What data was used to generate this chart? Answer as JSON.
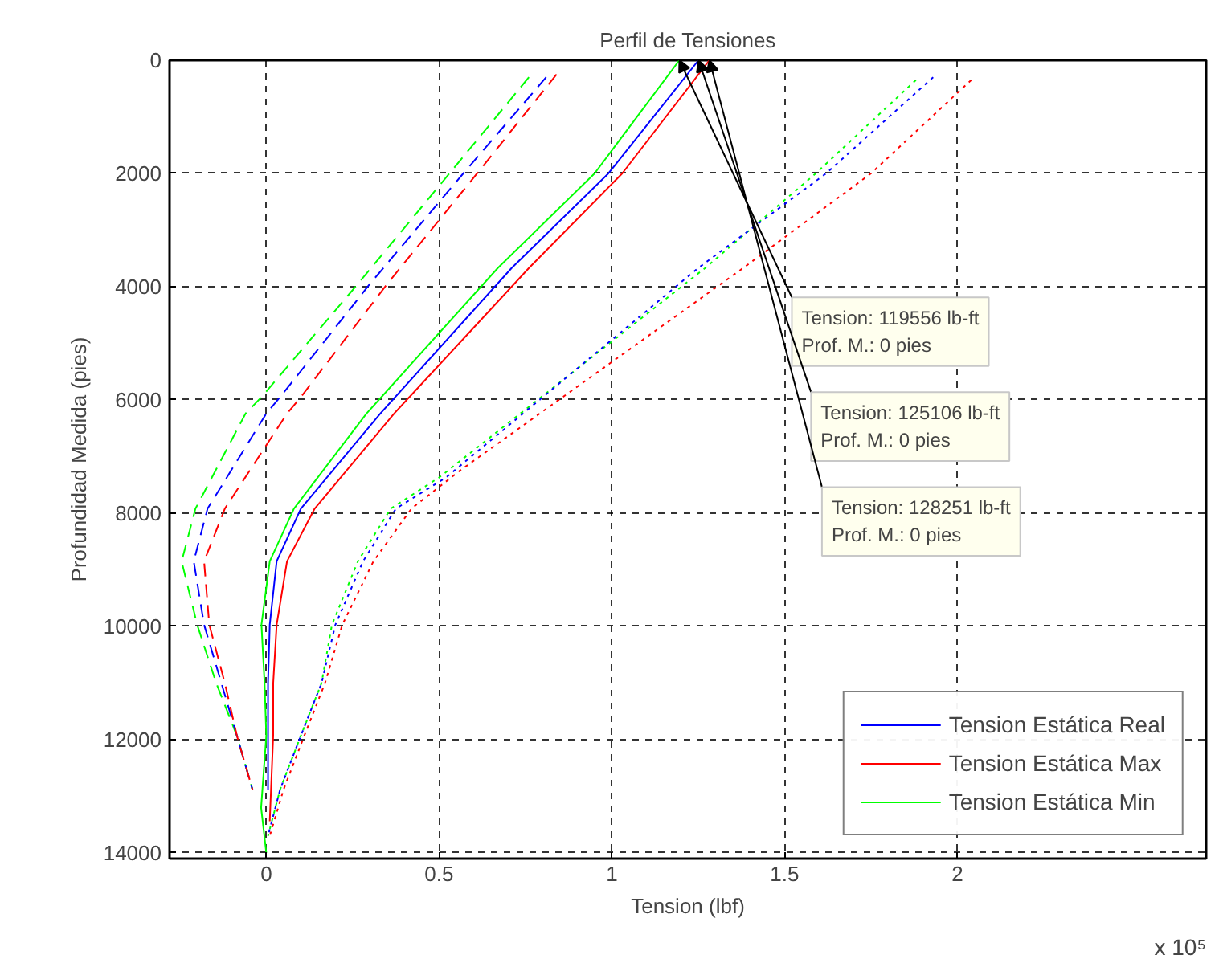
{
  "chart_data": {
    "type": "line",
    "title": "Perfil de Tensiones",
    "xlabel": "Tension (lbf)",
    "ylabel": "Profundidad Medida (pies)",
    "xlim": [
      -0.28,
      2.72
    ],
    "ylim": [
      14100,
      0
    ],
    "xticks": [
      0,
      0.5,
      1,
      1.5,
      2
    ],
    "yticks": [
      0,
      2000,
      4000,
      6000,
      8000,
      10000,
      12000,
      14000
    ],
    "grid": true,
    "legend": "bottom right",
    "annotations": [
      "x 10⁵",
      {
        "text": "Tension: 119556 lb-ft\nProf. M.: 0  pies",
        "x": 1.19556,
        "y": 0
      },
      {
        "text": "Tension: 125106 lb-ft\nProf. M.: 0  pies",
        "x": 1.25106,
        "y": 0
      },
      {
        "text": "Tension: 128251 lb-ft\nProf. M.: 0  pies",
        "x": 1.28251,
        "y": 0
      }
    ],
    "series": [
      {
        "name": "Tension Estática Real",
        "color": "#0000ff",
        "line_style": "solid",
        "x": [
          1.25106,
          0.99,
          0.71,
          0.33,
          0.1,
          0.03,
          0.01,
          0.005,
          0.005,
          0.005
        ],
        "values": [
          0,
          2000,
          3670,
          6240,
          7920,
          8850,
          9970,
          11000,
          11930,
          12880
        ]
      },
      {
        "name": "Tension Estática Max",
        "color": "#ff0000",
        "line_style": "solid",
        "x": [
          1.28251,
          1.03,
          0.76,
          0.37,
          0.14,
          0.06,
          0.03,
          0.02,
          0.02,
          0.01
        ],
        "values": [
          0,
          2000,
          3670,
          6240,
          7920,
          8850,
          9970,
          11000,
          11930,
          13440
        ]
      },
      {
        "name": "Tension Estática Min",
        "color": "#00ff00",
        "line_style": "solid",
        "x": [
          1.19556,
          0.95,
          0.67,
          0.29,
          0.08,
          0.01,
          -0.014,
          -0.005,
          0,
          -0.015,
          0
        ],
        "values": [
          0,
          2000,
          3670,
          6240,
          7920,
          8850,
          9970,
          11000,
          11930,
          13200,
          14000
        ]
      },
      {
        "color": "#00ff00",
        "line_style": "dashed",
        "x": [
          0.76,
          0.53,
          0.265,
          -0.014,
          -0.06,
          -0.205,
          -0.245,
          -0.2,
          -0.145,
          -0.085,
          -0.04
        ],
        "values": [
          300,
          2000,
          3950,
          5950,
          6240,
          7920,
          8850,
          9970,
          11000,
          11930,
          12880
        ]
      },
      {
        "color": "#0000ff",
        "line_style": "dashed",
        "x": [
          0.81,
          0.57,
          0.3,
          0.04,
          0,
          -0.17,
          -0.21,
          -0.18,
          -0.13,
          -0.085,
          -0.04
        ],
        "values": [
          300,
          2000,
          3950,
          5950,
          6240,
          7920,
          8850,
          9970,
          11000,
          11930,
          12880
        ]
      },
      {
        "color": "#ff0000",
        "line_style": "dashed",
        "x": [
          0.84,
          0.61,
          0.35,
          0.1,
          0.06,
          -0.12,
          -0.18,
          -0.165,
          -0.12,
          -0.085,
          -0.04
        ],
        "values": [
          250,
          2000,
          3950,
          5950,
          6240,
          7920,
          8850,
          9970,
          11000,
          11930,
          12880
        ]
      },
      {
        "color": "#00ff00",
        "line_style": "dotted",
        "x": [
          1.88,
          1.59,
          1.27,
          0.5,
          0.36,
          0.265,
          0.19,
          0.16,
          0.1,
          0.04,
          0.005
        ],
        "values": [
          350,
          2000,
          3670,
          7370,
          7920,
          8850,
          9970,
          11000,
          11930,
          12880,
          13700
        ]
      },
      {
        "color": "#0000ff",
        "line_style": "dotted",
        "x": [
          1.93,
          1.62,
          1.25,
          0.52,
          0.375,
          0.28,
          0.2,
          0.16,
          0.1,
          0.04,
          0.005
        ],
        "values": [
          300,
          2000,
          3670,
          7370,
          7920,
          8850,
          9970,
          11000,
          11930,
          12880,
          13700
        ]
      },
      {
        "color": "#ff0000",
        "line_style": "dotted",
        "x": [
          2.04,
          1.75,
          1.38,
          0.56,
          0.42,
          0.31,
          0.22,
          0.17,
          0.11,
          0.05,
          0.01
        ],
        "values": [
          350,
          2000,
          3670,
          7250,
          7920,
          8850,
          9970,
          11000,
          11930,
          12880,
          13700
        ]
      }
    ]
  }
}
